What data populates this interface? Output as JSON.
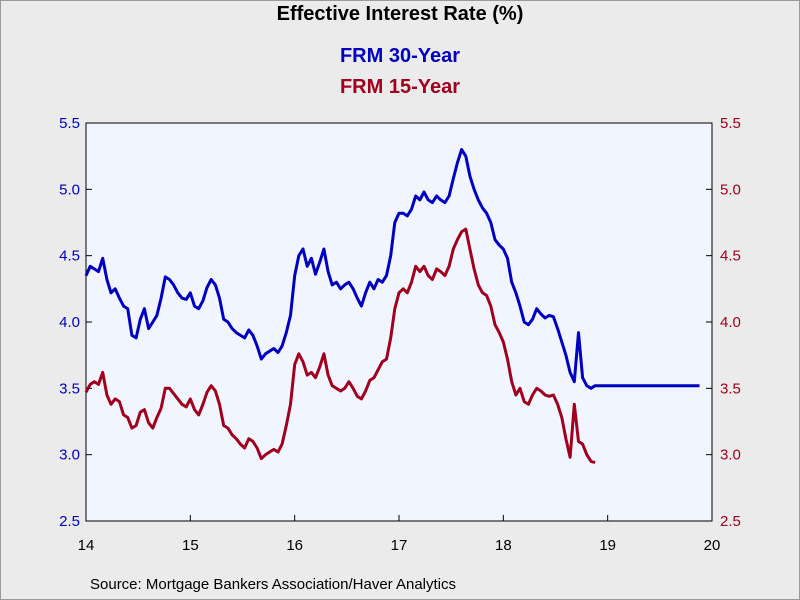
{
  "chart_data": {
    "type": "line",
    "title": "Effective Interest Rate (%)",
    "source": "Source:  Mortgage Bankers Association/Haver Analytics",
    "x_tick_labels": [
      "14",
      "15",
      "16",
      "17",
      "18",
      "19",
      "20"
    ],
    "x_range": [
      2014.0,
      2020.0
    ],
    "y_left": {
      "range": [
        2.5,
        5.5
      ],
      "ticks": [
        "5.5",
        "5.0",
        "4.5",
        "4.0",
        "3.5",
        "3.0",
        "2.5"
      ],
      "color": "#0000c0"
    },
    "y_right": {
      "range": [
        2.5,
        5.5
      ],
      "ticks": [
        "5.5",
        "5.0",
        "4.5",
        "4.0",
        "3.5",
        "3.0",
        "2.5"
      ],
      "color": "#a0001e"
    },
    "grid": false,
    "legend": "top-center",
    "series": [
      {
        "name": "FRM 30-Year",
        "color": "#0000c0",
        "x": [
          2014.0,
          2014.04,
          2014.08,
          2014.12,
          2014.16,
          2014.2,
          2014.24,
          2014.28,
          2014.32,
          2014.36,
          2014.4,
          2014.44,
          2014.48,
          2014.52,
          2014.56,
          2014.6,
          2014.64,
          2014.68,
          2014.72,
          2014.76,
          2014.8,
          2014.84,
          2014.88,
          2014.92,
          2014.96,
          2015.0,
          2015.04,
          2015.08,
          2015.12,
          2015.16,
          2015.2,
          2015.24,
          2015.28,
          2015.32,
          2015.36,
          2015.4,
          2015.44,
          2015.48,
          2015.52,
          2015.56,
          2015.6,
          2015.64,
          2015.68,
          2015.72,
          2015.76,
          2015.8,
          2015.84,
          2015.88,
          2015.92,
          2015.96,
          2016.0,
          2016.04,
          2016.08,
          2016.12,
          2016.16,
          2016.2,
          2016.24,
          2016.28,
          2016.32,
          2016.36,
          2016.4,
          2016.44,
          2016.48,
          2016.52,
          2016.56,
          2016.6,
          2016.64,
          2016.68,
          2016.72,
          2016.76,
          2016.8,
          2016.84,
          2016.88,
          2016.92,
          2016.96,
          2017.0,
          2017.04,
          2017.08,
          2017.12,
          2017.16,
          2017.2,
          2017.24,
          2017.28,
          2017.32,
          2017.36,
          2017.4,
          2017.44,
          2017.48,
          2017.52,
          2017.56,
          2017.6,
          2017.64,
          2017.68,
          2017.72,
          2017.76,
          2017.8,
          2017.84,
          2017.88,
          2017.92,
          2017.96,
          2018.0,
          2018.04,
          2018.08,
          2018.12,
          2018.16,
          2018.2,
          2018.24,
          2018.28,
          2018.32,
          2018.36,
          2018.4,
          2018.44,
          2018.48,
          2018.52,
          2018.56,
          2018.6,
          2018.64,
          2018.68,
          2018.72,
          2018.76,
          2018.8,
          2018.84,
          2018.88,
          2018.92,
          2018.96,
          2019.0,
          2019.04,
          2019.08,
          2019.12,
          2019.16,
          2019.2,
          2019.24,
          2019.28,
          2019.32,
          2019.36,
          2019.4,
          2019.44,
          2019.48,
          2019.52,
          2019.56,
          2019.6,
          2019.64,
          2019.68,
          2019.72,
          2019.76,
          2019.8,
          2019.84,
          2019.88
        ],
        "values": [
          4.35,
          4.42,
          4.4,
          4.38,
          4.48,
          4.32,
          4.22,
          4.25,
          4.18,
          4.12,
          4.1,
          3.9,
          3.88,
          4.02,
          4.1,
          3.95,
          4.0,
          4.05,
          4.18,
          4.34,
          4.32,
          4.28,
          4.22,
          4.18,
          4.17,
          4.22,
          4.12,
          4.1,
          4.16,
          4.26,
          4.32,
          4.28,
          4.18,
          4.02,
          4.0,
          3.95,
          3.92,
          3.9,
          3.88,
          3.94,
          3.9,
          3.82,
          3.72,
          3.76,
          3.78,
          3.8,
          3.77,
          3.82,
          3.92,
          4.05,
          4.35,
          4.5,
          4.55,
          4.42,
          4.48,
          4.36,
          4.45,
          4.55,
          4.38,
          4.28,
          4.3,
          4.25,
          4.28,
          4.3,
          4.25,
          4.18,
          4.12,
          4.22,
          4.3,
          4.25,
          4.32,
          4.3,
          4.35,
          4.5,
          4.75,
          4.82,
          4.82,
          4.8,
          4.85,
          4.95,
          4.92,
          4.98,
          4.92,
          4.9,
          4.95,
          4.92,
          4.9,
          4.95,
          5.08,
          5.2,
          5.3,
          5.25,
          5.1,
          5.0,
          4.92,
          4.86,
          4.82,
          4.75,
          4.62,
          4.58,
          4.55,
          4.48,
          4.3,
          4.22,
          4.12,
          4.0,
          3.98,
          4.02,
          4.1,
          4.06,
          4.03,
          4.05,
          4.04,
          3.95,
          3.85,
          3.75,
          3.62,
          3.55,
          3.92,
          3.58,
          3.52,
          3.5,
          3.52,
          3.52,
          3.52,
          3.52,
          3.52,
          3.52,
          3.52,
          3.52,
          3.52,
          3.52,
          3.52,
          3.52,
          3.52,
          3.52,
          3.52,
          3.52,
          3.52,
          3.52,
          3.52,
          3.52,
          3.52,
          3.52,
          3.52,
          3.52,
          3.52,
          3.52
        ]
      },
      {
        "name": "FRM 15-Year",
        "color": "#a0001e",
        "x": [
          2014.0,
          2014.04,
          2014.08,
          2014.12,
          2014.16,
          2014.2,
          2014.24,
          2014.28,
          2014.32,
          2014.36,
          2014.4,
          2014.44,
          2014.48,
          2014.52,
          2014.56,
          2014.6,
          2014.64,
          2014.68,
          2014.72,
          2014.76,
          2014.8,
          2014.84,
          2014.88,
          2014.92,
          2014.96,
          2015.0,
          2015.04,
          2015.08,
          2015.12,
          2015.16,
          2015.2,
          2015.24,
          2015.28,
          2015.32,
          2015.36,
          2015.4,
          2015.44,
          2015.48,
          2015.52,
          2015.56,
          2015.6,
          2015.64,
          2015.68,
          2015.72,
          2015.76,
          2015.8,
          2015.84,
          2015.88,
          2015.92,
          2015.96,
          2016.0,
          2016.04,
          2016.08,
          2016.12,
          2016.16,
          2016.2,
          2016.24,
          2016.28,
          2016.32,
          2016.36,
          2016.4,
          2016.44,
          2016.48,
          2016.52,
          2016.56,
          2016.6,
          2016.64,
          2016.68,
          2016.72,
          2016.76,
          2016.8,
          2016.84,
          2016.88,
          2016.92,
          2016.96,
          2017.0,
          2017.04,
          2017.08,
          2017.12,
          2017.16,
          2017.2,
          2017.24,
          2017.28,
          2017.32,
          2017.36,
          2017.4,
          2017.44,
          2017.48,
          2017.52,
          2017.56,
          2017.6,
          2017.64,
          2017.68,
          2017.72,
          2017.76,
          2017.8,
          2017.84,
          2017.88,
          2017.92,
          2017.96,
          2018.0,
          2018.04,
          2018.08,
          2018.12,
          2018.16,
          2018.2,
          2018.24,
          2018.28,
          2018.32,
          2018.36,
          2018.4,
          2018.44,
          2018.48,
          2018.52,
          2018.56,
          2018.6,
          2018.64,
          2018.68,
          2018.72,
          2018.76,
          2018.8,
          2018.84,
          2018.88
        ],
        "values": [
          3.47,
          3.53,
          3.55,
          3.53,
          3.62,
          3.45,
          3.38,
          3.42,
          3.4,
          3.3,
          3.28,
          3.2,
          3.22,
          3.32,
          3.34,
          3.24,
          3.2,
          3.28,
          3.35,
          3.5,
          3.5,
          3.46,
          3.42,
          3.38,
          3.36,
          3.42,
          3.34,
          3.3,
          3.38,
          3.47,
          3.52,
          3.48,
          3.38,
          3.22,
          3.2,
          3.15,
          3.12,
          3.08,
          3.05,
          3.12,
          3.1,
          3.05,
          2.97,
          3.0,
          3.02,
          3.04,
          3.02,
          3.08,
          3.22,
          3.38,
          3.68,
          3.76,
          3.7,
          3.6,
          3.62,
          3.58,
          3.66,
          3.76,
          3.6,
          3.52,
          3.5,
          3.48,
          3.5,
          3.55,
          3.5,
          3.44,
          3.42,
          3.48,
          3.56,
          3.58,
          3.64,
          3.7,
          3.72,
          3.88,
          4.1,
          4.22,
          4.25,
          4.22,
          4.3,
          4.42,
          4.38,
          4.42,
          4.35,
          4.32,
          4.4,
          4.38,
          4.35,
          4.42,
          4.55,
          4.62,
          4.68,
          4.7,
          4.55,
          4.4,
          4.28,
          4.22,
          4.2,
          4.12,
          3.98,
          3.92,
          3.85,
          3.72,
          3.55,
          3.45,
          3.5,
          3.4,
          3.38,
          3.45,
          3.5,
          3.48,
          3.45,
          3.44,
          3.45,
          3.38,
          3.28,
          3.12,
          2.98,
          3.38,
          3.1,
          3.08,
          3.0,
          2.95,
          2.94
        ]
      }
    ]
  }
}
